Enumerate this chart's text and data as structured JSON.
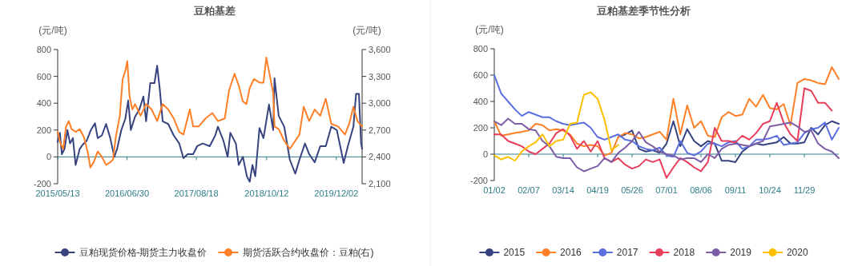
{
  "chart_data": [
    {
      "type": "line",
      "title": "豆粕基差",
      "ylabel": "(元/吨)",
      "y2label": "(元/吨)",
      "legend": "bottom",
      "xlim": [
        "2015-05-13",
        "2020-05-04"
      ],
      "xticks": [
        {
          "value": "2015-05-13",
          "label": "2015/05/13"
        },
        {
          "value": "2016-06-30",
          "label": "2016/06/30"
        },
        {
          "value": "2017-08-18",
          "label": "2017/08/18"
        },
        {
          "value": "2018-10-12",
          "label": "2018/10/12"
        },
        {
          "value": "2019-12-02",
          "label": "2019/12/02"
        }
      ],
      "ylim": [
        -200,
        800
      ],
      "yticks": [
        -200,
        0,
        200,
        400,
        600,
        800
      ],
      "y2lim": [
        2100,
        3600
      ],
      "y2ticks": [
        {
          "value": 2100,
          "label": "2,100"
        },
        {
          "value": 2400,
          "label": "2,400"
        },
        {
          "value": 2700,
          "label": "2,700"
        },
        {
          "value": 3000,
          "label": "3,000"
        },
        {
          "value": 3300,
          "label": "3,300"
        },
        {
          "value": 3600,
          "label": "3,600"
        }
      ],
      "series": [
        {
          "name": "豆粕现货价格-期货主力收盘价",
          "color": "#36437f",
          "x": [
            "2015-05-13",
            "2015-05-26",
            "2015-06-07",
            "2015-06-23",
            "2015-07-10",
            "2015-07-26",
            "2015-08-12",
            "2015-08-28",
            "2015-09-22",
            "2015-10-09",
            "2015-11-02",
            "2015-11-27",
            "2015-12-22",
            "2016-01-07",
            "2016-02-01",
            "2016-02-26",
            "2016-03-22",
            "2016-04-15",
            "2016-05-02",
            "2016-05-27",
            "2016-06-20",
            "2016-07-07",
            "2016-07-23",
            "2016-08-17",
            "2016-09-11",
            "2016-10-06",
            "2016-10-22",
            "2016-11-16",
            "2016-12-11",
            "2016-12-27",
            "2017-01-13",
            "2017-01-29",
            "2017-03-03",
            "2017-04-05",
            "2017-05-08",
            "2017-06-02",
            "2017-06-27",
            "2017-07-30",
            "2017-08-23",
            "2017-09-25",
            "2017-11-06",
            "2017-12-09",
            "2017-12-25",
            "2018-01-27",
            "2018-02-21",
            "2018-03-09",
            "2018-04-11",
            "2018-04-28",
            "2018-05-23",
            "2018-06-16",
            "2018-07-03",
            "2018-07-19",
            "2018-08-05",
            "2018-08-30",
            "2018-09-23",
            "2018-10-26",
            "2018-11-20",
            "2018-11-28",
            "2018-12-23",
            "2019-01-25",
            "2019-02-27",
            "2019-04-01",
            "2019-04-26",
            "2019-05-29",
            "2019-06-23",
            "2019-07-26",
            "2019-08-28",
            "2019-09-30",
            "2019-11-02",
            "2019-12-05",
            "2020-01-15",
            "2020-02-09",
            "2020-03-13",
            "2020-03-29",
            "2020-04-15",
            "2020-04-28",
            "2020-05-04"
          ],
          "values": [
            110,
            180,
            20,
            60,
            200,
            100,
            140,
            -60,
            60,
            90,
            120,
            200,
            250,
            140,
            160,
            245,
            140,
            0,
            60,
            200,
            285,
            420,
            200,
            300,
            350,
            450,
            265,
            550,
            550,
            680,
            490,
            265,
            245,
            160,
            100,
            -10,
            20,
            20,
            80,
            100,
            80,
            160,
            225,
            120,
            0,
            180,
            100,
            -60,
            0,
            -145,
            -185,
            -60,
            -145,
            215,
            140,
            390,
            200,
            585,
            305,
            225,
            -20,
            -125,
            -20,
            100,
            20,
            -40,
            80,
            80,
            225,
            200,
            -45,
            80,
            225,
            470,
            470,
            100,
            60
          ]
        },
        {
          "name": "期货活跃合约收盘价：豆粕(右)",
          "color": "#ff7f27",
          "axis": "y2",
          "x": [
            "2015-05-13",
            "2015-05-30",
            "2015-06-15",
            "2015-07-02",
            "2015-07-18",
            "2015-08-04",
            "2015-08-28",
            "2015-09-22",
            "2015-10-17",
            "2015-11-11",
            "2015-11-24",
            "2015-12-14",
            "2016-01-07",
            "2016-02-01",
            "2016-02-26",
            "2016-03-22",
            "2016-04-07",
            "2016-04-24",
            "2016-05-18",
            "2016-06-04",
            "2016-06-20",
            "2016-07-02",
            "2016-07-15",
            "2016-08-01",
            "2016-08-17",
            "2016-09-19",
            "2016-10-22",
            "2016-11-24",
            "2016-12-27",
            "2017-01-29",
            "2017-03-03",
            "2017-04-05",
            "2017-05-08",
            "2017-06-02",
            "2017-07-10",
            "2017-07-30",
            "2017-09-01",
            "2017-10-12",
            "2017-11-22",
            "2017-12-25",
            "2018-02-04",
            "2018-03-01",
            "2018-04-03",
            "2018-04-28",
            "2018-05-23",
            "2018-06-13",
            "2018-07-03",
            "2018-07-28",
            "2018-08-30",
            "2018-09-23",
            "2018-10-10",
            "2018-11-04",
            "2018-11-20",
            "2018-11-28",
            "2018-12-23",
            "2019-01-25",
            "2019-02-27",
            "2019-04-01",
            "2019-04-26",
            "2019-05-21",
            "2019-06-23",
            "2019-07-26",
            "2019-08-28",
            "2019-09-30",
            "2019-11-02",
            "2019-12-13",
            "2020-01-23",
            "2020-02-17",
            "2020-03-13",
            "2020-04-06",
            "2020-05-04"
          ],
          "values": [
            2680,
            2550,
            2490,
            2740,
            2800,
            2710,
            2680,
            2710,
            2620,
            2430,
            2280,
            2340,
            2460,
            2400,
            2310,
            2340,
            2370,
            2620,
            2860,
            3270,
            3360,
            3470,
            3080,
            2930,
            2990,
            2860,
            2990,
            2930,
            2800,
            2990,
            2930,
            2830,
            2680,
            2650,
            2930,
            2740,
            2740,
            2830,
            2890,
            2800,
            2830,
            3140,
            3330,
            3200,
            3020,
            2990,
            3170,
            3270,
            3230,
            3230,
            3510,
            3270,
            3110,
            2740,
            2710,
            2580,
            2490,
            2580,
            2650,
            2960,
            2800,
            2930,
            2860,
            3050,
            2770,
            2740,
            2650,
            2770,
            2960,
            2800,
            2740
          ]
        }
      ],
      "ref_lines": [
        {
          "axis": "y",
          "value": 0,
          "color": "#2e7d87"
        }
      ]
    },
    {
      "type": "line",
      "title": "豆粕基差季节性分析",
      "ylabel": "(元/吨)",
      "legend": "bottom",
      "categories": [
        "01/02",
        null,
        null,
        null,
        null,
        "02/07",
        null,
        null,
        null,
        null,
        "03/14",
        null,
        null,
        null,
        null,
        "04/19",
        null,
        null,
        null,
        null,
        "05/26",
        null,
        null,
        null,
        null,
        "07/01",
        null,
        null,
        null,
        null,
        "08/06",
        null,
        null,
        null,
        null,
        "09/11",
        null,
        null,
        null,
        null,
        "10/24",
        null,
        null,
        null,
        null,
        "11/29",
        null,
        null,
        null,
        null,
        null
      ],
      "ylim": [
        -200,
        800
      ],
      "yticks": [
        -200,
        0,
        200,
        400,
        600,
        800
      ],
      "ref_lines": [
        {
          "axis": "y",
          "value": 0,
          "color": "#2e7d87"
        }
      ],
      "series": [
        {
          "name": "2015",
          "color": "#36437f",
          "values": [
            null,
            null,
            null,
            null,
            null,
            null,
            null,
            null,
            null,
            null,
            null,
            null,
            null,
            null,
            null,
            null,
            null,
            null,
            130,
            150,
            180,
            40,
            20,
            30,
            10,
            80,
            250,
            60,
            190,
            100,
            60,
            100,
            80,
            -50,
            -50,
            -60,
            20,
            60,
            80,
            70,
            80,
            90,
            130,
            80,
            80,
            90,
            200,
            150,
            220,
            250,
            230
          ]
        },
        {
          "name": "2016",
          "color": "#ff7f27",
          "values": [
            250,
            140,
            150,
            160,
            170,
            180,
            230,
            220,
            180,
            190,
            180,
            150,
            80,
            60,
            70,
            60,
            -10,
            10,
            130,
            160,
            150,
            120,
            130,
            150,
            170,
            110,
            420,
            150,
            370,
            200,
            250,
            140,
            130,
            280,
            320,
            290,
            300,
            420,
            360,
            450,
            350,
            340,
            380,
            220,
            540,
            570,
            560,
            540,
            530,
            660,
            570
          ]
        },
        {
          "name": "2017",
          "color": "#5b6fe0",
          "values": [
            600,
            460,
            400,
            340,
            290,
            320,
            300,
            280,
            280,
            250,
            230,
            220,
            230,
            240,
            200,
            130,
            110,
            130,
            150,
            110,
            100,
            60,
            40,
            30,
            50,
            -10,
            -20,
            100,
            10,
            -10,
            20,
            80,
            80,
            60,
            90,
            100,
            40,
            60,
            110,
            110,
            120,
            140,
            70,
            80,
            90,
            160,
            190,
            200,
            240,
            110,
            200
          ]
        },
        {
          "name": "2018",
          "color": "#e83e5c",
          "values": [
            150,
            150,
            100,
            80,
            60,
            20,
            0,
            40,
            80,
            160,
            190,
            140,
            40,
            100,
            20,
            100,
            -30,
            -60,
            -30,
            -80,
            -110,
            -90,
            -40,
            -60,
            -40,
            -180,
            -100,
            -30,
            -60,
            -100,
            -130,
            -60,
            200,
            100,
            100,
            90,
            140,
            110,
            160,
            230,
            250,
            390,
            240,
            150,
            100,
            500,
            480,
            390,
            390,
            330,
            null
          ]
        },
        {
          "name": "2019",
          "color": "#7d5ea6",
          "values": [
            250,
            220,
            270,
            230,
            230,
            190,
            180,
            100,
            60,
            -20,
            -30,
            -30,
            -100,
            -130,
            -110,
            -90,
            -30,
            -60,
            10,
            50,
            100,
            170,
            90,
            60,
            20,
            0,
            -10,
            -40,
            -30,
            -30,
            -60,
            0,
            -30,
            40,
            70,
            80,
            70,
            60,
            80,
            100,
            210,
            220,
            230,
            240,
            210,
            170,
            180,
            80,
            40,
            20,
            -30
          ]
        },
        {
          "name": "2020",
          "color": "#fdc000",
          "values": [
            -10,
            -40,
            -20,
            -50,
            20,
            60,
            90,
            150,
            60,
            100,
            110,
            230,
            240,
            450,
            470,
            420,
            260,
            30,
            70,
            null,
            null,
            null,
            null,
            null,
            null,
            null,
            null,
            null,
            null,
            null,
            null,
            null,
            null,
            null,
            null,
            null,
            null,
            null,
            null,
            null,
            null,
            null,
            null,
            null,
            null,
            null,
            null,
            null,
            null,
            null,
            null
          ]
        }
      ]
    }
  ]
}
